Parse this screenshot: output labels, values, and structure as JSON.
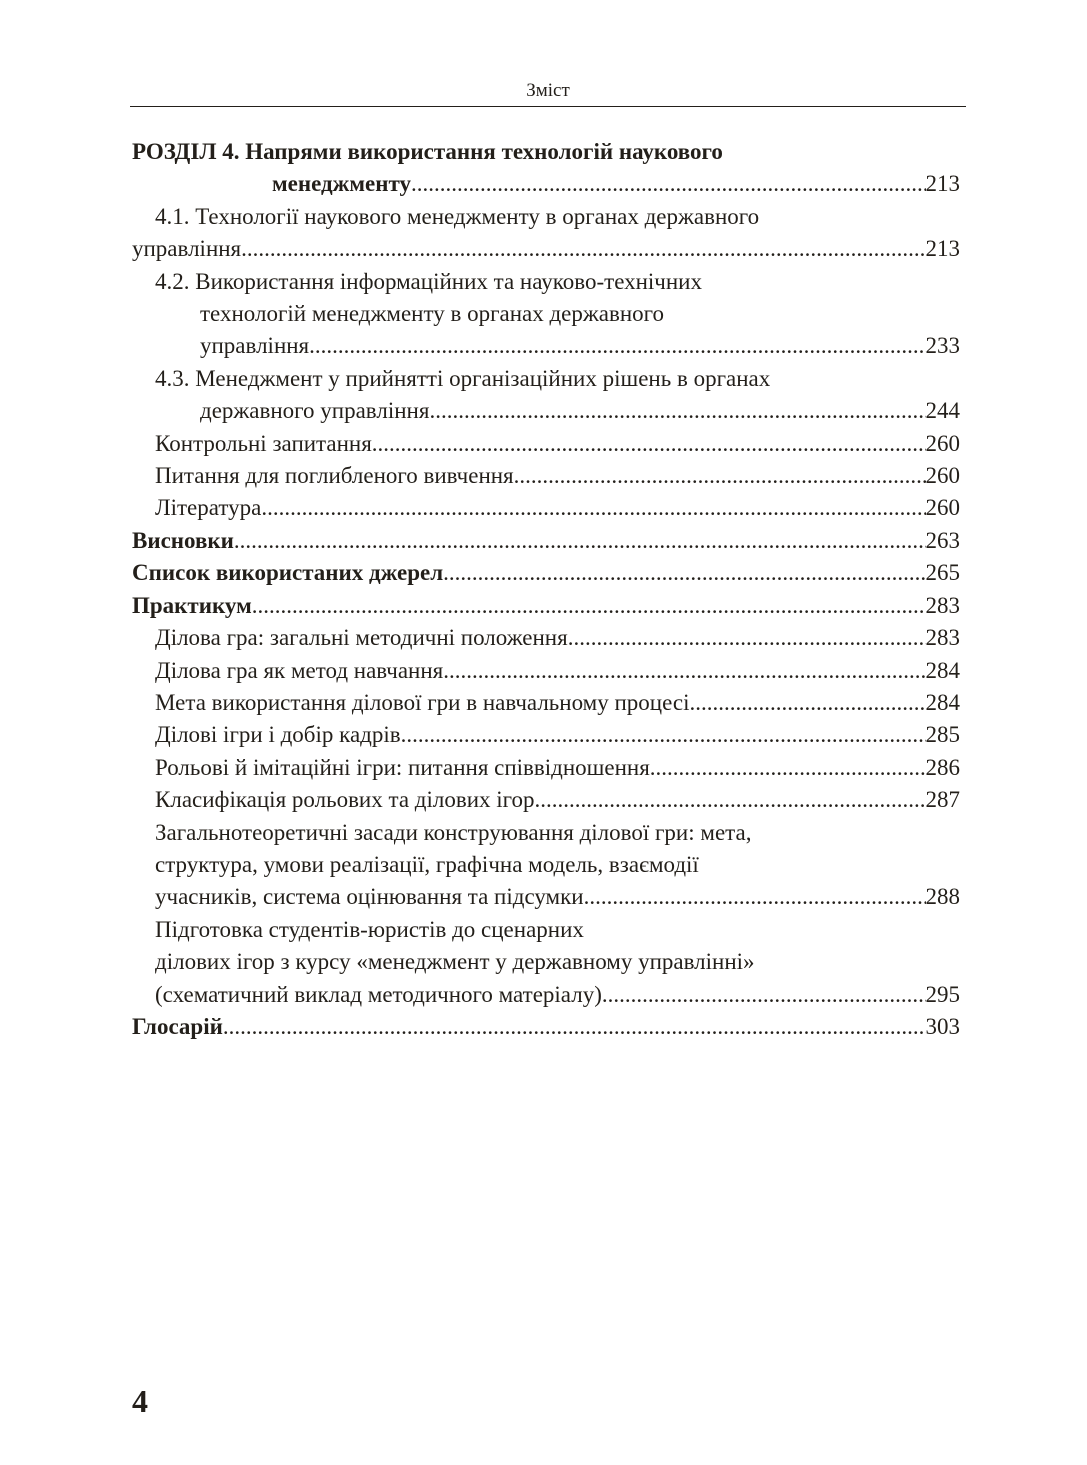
{
  "running_head": "Зміст",
  "page_number": "4",
  "entries": [
    {
      "bold": true,
      "indent": [
        0,
        140
      ],
      "lines": [
        "РОЗДІЛ 4. Напрями використання технологій наукового",
        "менеджменту"
      ],
      "page": "213"
    },
    {
      "bold": false,
      "indent": [
        23,
        0
      ],
      "lines": [
        "4.1. Технології наукового менеджменту в органах державного",
        "управління"
      ],
      "page": "213"
    },
    {
      "bold": false,
      "indent": [
        23,
        68,
        68
      ],
      "lines": [
        "4.2. Використання інформаційних та науково-технічних",
        "технологій менеджменту в органах державного",
        "управління"
      ],
      "page": "233"
    },
    {
      "bold": false,
      "indent": [
        23,
        68
      ],
      "lines": [
        "4.3. Менеджмент у прийнятті організаційних рішень в органах",
        "державного управління"
      ],
      "page": "244"
    },
    {
      "bold": false,
      "indent": [
        23
      ],
      "lines": [
        "Контрольні запитання "
      ],
      "page": "260"
    },
    {
      "bold": false,
      "indent": [
        23
      ],
      "lines": [
        "Питання для поглибленого вивчення "
      ],
      "page": "260"
    },
    {
      "bold": false,
      "indent": [
        23
      ],
      "lines": [
        "Література"
      ],
      "page": "260"
    },
    {
      "bold": true,
      "indent": [
        0
      ],
      "lines": [
        "Висновки"
      ],
      "page": "263"
    },
    {
      "bold": true,
      "indent": [
        0
      ],
      "lines": [
        "Список використаних джерел"
      ],
      "page": "265"
    },
    {
      "bold": true,
      "indent": [
        0
      ],
      "lines": [
        "Практикум"
      ],
      "page": "283"
    },
    {
      "bold": false,
      "indent": [
        23
      ],
      "lines": [
        "Ділова гра: загальні методичні положення "
      ],
      "page": "283"
    },
    {
      "bold": false,
      "indent": [
        23
      ],
      "lines": [
        "Ділова гра як метод навчання "
      ],
      "page": "284"
    },
    {
      "bold": false,
      "indent": [
        23
      ],
      "lines": [
        "Мета використання ділової гри в навчальному процесі "
      ],
      "page": "284"
    },
    {
      "bold": false,
      "indent": [
        23
      ],
      "lines": [
        "Ділові ігри і добір кадрів"
      ],
      "page": "285"
    },
    {
      "bold": false,
      "indent": [
        23
      ],
      "lines": [
        "Рольові й імітаційні ігри: питання співвідношення"
      ],
      "page": "286"
    },
    {
      "bold": false,
      "indent": [
        23
      ],
      "lines": [
        "Класифікація рольових та ділових ігор"
      ],
      "page": "287"
    },
    {
      "bold": false,
      "indent": [
        23,
        23,
        23
      ],
      "lines": [
        "Загальнотеоретичні засади конструювання ділової гри: мета,",
        "структура, умови реалізації, графічна модель, взаємодії",
        "учасників, система оцінювання та підсумки"
      ],
      "page": "288"
    },
    {
      "bold": false,
      "indent": [
        23,
        23,
        23
      ],
      "lines": [
        "Підготовка студентів-юристів до сценарних",
        "ділових ігор з курсу «менеджмент у державному управлінні»",
        "(схематичний виклад методичного матеріалу)"
      ],
      "page": "295"
    },
    {
      "bold": true,
      "indent": [
        0
      ],
      "lines": [
        "Глосарій"
      ],
      "page": "303"
    }
  ]
}
